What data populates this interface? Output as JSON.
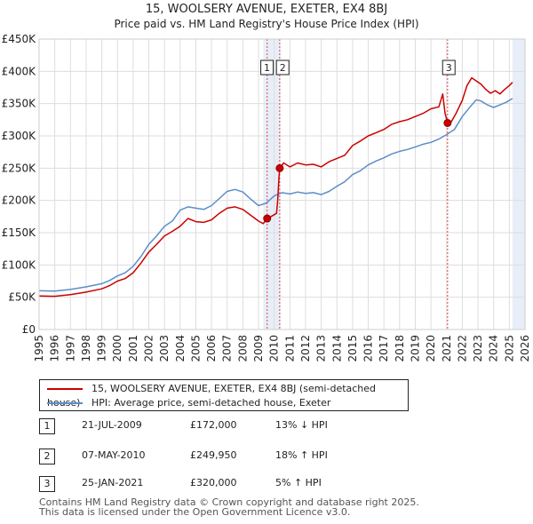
{
  "title": "15, WOOLSERY AVENUE, EXETER, EX4 8BJ",
  "subtitle": "Price paid vs. HM Land Registry's House Price Index (HPI)",
  "chart_data": {
    "type": "line",
    "x_range": [
      1995,
      2026
    ],
    "y_range": [
      0,
      450000
    ],
    "y_ticks": [
      {
        "value": 0,
        "label": "£0"
      },
      {
        "value": 50000,
        "label": "£50K"
      },
      {
        "value": 100000,
        "label": "£100K"
      },
      {
        "value": 150000,
        "label": "£150K"
      },
      {
        "value": 200000,
        "label": "£200K"
      },
      {
        "value": 250000,
        "label": "£250K"
      },
      {
        "value": 300000,
        "label": "£300K"
      },
      {
        "value": 350000,
        "label": "£350K"
      },
      {
        "value": 400000,
        "label": "£400K"
      },
      {
        "value": 450000,
        "label": "£450K"
      }
    ],
    "x_ticks": [
      "1995",
      "1996",
      "1997",
      "1998",
      "1999",
      "2000",
      "2001",
      "2002",
      "2003",
      "2004",
      "2005",
      "2006",
      "2007",
      "2008",
      "2009",
      "2010",
      "2011",
      "2012",
      "2013",
      "2014",
      "2015",
      "2016",
      "2017",
      "2018",
      "2019",
      "2020",
      "2021",
      "2022",
      "2023",
      "2024",
      "2025",
      "2026"
    ],
    "shade_regions": [
      {
        "from": 2009.3,
        "to": 2010.4
      },
      {
        "from": 2025.2,
        "to": 2026
      }
    ],
    "series": [
      {
        "name": "15, WOOLSERY AVENUE, EXETER, EX4 8BJ (semi-detached house)",
        "color": "#cc0000",
        "points": [
          [
            1995.0,
            52000
          ],
          [
            1996.0,
            51500
          ],
          [
            1997.0,
            54000
          ],
          [
            1998.0,
            58000
          ],
          [
            1999.0,
            63000
          ],
          [
            1999.5,
            68000
          ],
          [
            2000.0,
            75000
          ],
          [
            2000.5,
            79000
          ],
          [
            2001.0,
            88000
          ],
          [
            2001.5,
            103000
          ],
          [
            2002.0,
            120000
          ],
          [
            2002.5,
            132000
          ],
          [
            2003.0,
            145000
          ],
          [
            2003.5,
            152000
          ],
          [
            2004.0,
            160000
          ],
          [
            2004.5,
            172000
          ],
          [
            2005.0,
            167000
          ],
          [
            2005.5,
            166000
          ],
          [
            2006.0,
            170000
          ],
          [
            2006.5,
            180000
          ],
          [
            2007.0,
            188000
          ],
          [
            2007.5,
            190000
          ],
          [
            2008.0,
            186000
          ],
          [
            2008.5,
            177000
          ],
          [
            2009.0,
            168000
          ],
          [
            2009.3,
            164000
          ],
          [
            2009.55,
            172000
          ],
          [
            2009.8,
            175000
          ],
          [
            2010.15,
            180000
          ],
          [
            2010.22,
            200000
          ],
          [
            2010.3,
            235000
          ],
          [
            2010.35,
            249950
          ],
          [
            2010.6,
            258000
          ],
          [
            2011.0,
            252000
          ],
          [
            2011.5,
            258000
          ],
          [
            2012.0,
            255000
          ],
          [
            2012.5,
            256000
          ],
          [
            2013.0,
            252000
          ],
          [
            2013.5,
            260000
          ],
          [
            2014.0,
            265000
          ],
          [
            2014.5,
            270000
          ],
          [
            2015.0,
            285000
          ],
          [
            2015.5,
            292000
          ],
          [
            2016.0,
            300000
          ],
          [
            2016.5,
            305000
          ],
          [
            2017.0,
            310000
          ],
          [
            2017.5,
            318000
          ],
          [
            2018.0,
            322000
          ],
          [
            2018.5,
            325000
          ],
          [
            2019.0,
            330000
          ],
          [
            2019.5,
            335000
          ],
          [
            2020.0,
            342000
          ],
          [
            2020.5,
            345000
          ],
          [
            2020.75,
            365000
          ],
          [
            2020.9,
            335000
          ],
          [
            2021.06,
            320000
          ],
          [
            2021.3,
            322000
          ],
          [
            2021.6,
            335000
          ],
          [
            2022.0,
            355000
          ],
          [
            2022.3,
            378000
          ],
          [
            2022.6,
            390000
          ],
          [
            2022.9,
            385000
          ],
          [
            2023.2,
            380000
          ],
          [
            2023.5,
            372000
          ],
          [
            2023.8,
            366000
          ],
          [
            2024.1,
            370000
          ],
          [
            2024.4,
            365000
          ],
          [
            2024.7,
            372000
          ],
          [
            2025.0,
            378000
          ],
          [
            2025.2,
            383000
          ]
        ]
      },
      {
        "name": "HPI: Average price, semi-detached house, Exeter",
        "color": "#5b8ec9",
        "points": [
          [
            1995.0,
            60000
          ],
          [
            1996.0,
            59500
          ],
          [
            1997.0,
            62000
          ],
          [
            1998.0,
            66000
          ],
          [
            1999.0,
            71000
          ],
          [
            1999.5,
            76000
          ],
          [
            2000.0,
            83000
          ],
          [
            2000.5,
            88000
          ],
          [
            2001.0,
            98000
          ],
          [
            2001.5,
            113000
          ],
          [
            2002.0,
            132000
          ],
          [
            2002.5,
            145000
          ],
          [
            2003.0,
            160000
          ],
          [
            2003.5,
            168000
          ],
          [
            2004.0,
            185000
          ],
          [
            2004.5,
            190000
          ],
          [
            2005.0,
            188000
          ],
          [
            2005.5,
            186000
          ],
          [
            2006.0,
            192000
          ],
          [
            2006.5,
            203000
          ],
          [
            2007.0,
            214000
          ],
          [
            2007.5,
            217000
          ],
          [
            2008.0,
            213000
          ],
          [
            2008.5,
            202000
          ],
          [
            2009.0,
            192000
          ],
          [
            2009.5,
            196000
          ],
          [
            2010.0,
            207000
          ],
          [
            2010.5,
            212000
          ],
          [
            2011.0,
            210000
          ],
          [
            2011.5,
            213000
          ],
          [
            2012.0,
            211000
          ],
          [
            2012.5,
            212000
          ],
          [
            2013.0,
            209000
          ],
          [
            2013.5,
            214000
          ],
          [
            2014.0,
            222000
          ],
          [
            2014.5,
            229000
          ],
          [
            2015.0,
            240000
          ],
          [
            2015.5,
            246000
          ],
          [
            2016.0,
            255000
          ],
          [
            2016.5,
            261000
          ],
          [
            2017.0,
            266000
          ],
          [
            2017.5,
            272000
          ],
          [
            2018.0,
            276000
          ],
          [
            2018.5,
            279000
          ],
          [
            2019.0,
            283000
          ],
          [
            2019.5,
            287000
          ],
          [
            2020.0,
            290000
          ],
          [
            2020.5,
            295000
          ],
          [
            2021.0,
            302000
          ],
          [
            2021.5,
            310000
          ],
          [
            2022.0,
            330000
          ],
          [
            2022.5,
            345000
          ],
          [
            2022.9,
            356000
          ],
          [
            2023.2,
            354000
          ],
          [
            2023.6,
            348000
          ],
          [
            2024.0,
            344000
          ],
          [
            2024.4,
            348000
          ],
          [
            2024.8,
            352000
          ],
          [
            2025.2,
            358000
          ]
        ]
      }
    ],
    "markers": [
      {
        "label": "1",
        "date": 2009.55,
        "value": 172000,
        "line_x": 2009.55,
        "box_x": 2009.2
      },
      {
        "label": "2",
        "date": 2010.35,
        "value": 249950,
        "line_x": 2010.35,
        "box_x": 2010.2
      },
      {
        "label": "3",
        "date": 2021.06,
        "value": 320000,
        "line_x": 2021.06,
        "box_x": 2020.8
      }
    ]
  },
  "legend": {
    "property": "15, WOOLSERY AVENUE, EXETER, EX4 8BJ (semi-detached house)",
    "hpi": "HPI: Average price, semi-detached house, Exeter",
    "property_color": "#cc0000",
    "hpi_color": "#5b8ec9"
  },
  "sales": [
    {
      "num": "1",
      "date": "21-JUL-2009",
      "price": "£172,000",
      "hpi": "13% ↓ HPI"
    },
    {
      "num": "2",
      "date": "07-MAY-2010",
      "price": "£249,950",
      "hpi": "18% ↑ HPI"
    },
    {
      "num": "3",
      "date": "25-JAN-2021",
      "price": "£320,000",
      "hpi": "5% ↑ HPI"
    }
  ],
  "footer": {
    "line1": "Contains HM Land Registry data © Crown copyright and database right 2025.",
    "line2": "This data is licensed under the Open Government Licence v3.0."
  }
}
